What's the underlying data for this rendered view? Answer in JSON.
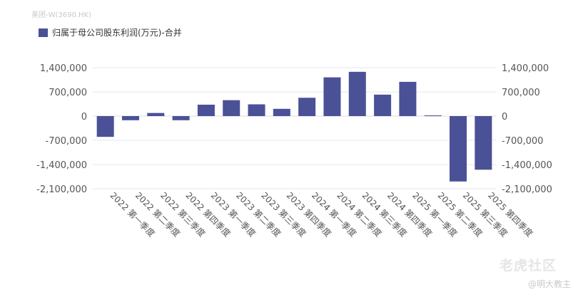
{
  "source_label": "美团-W(3690.HK)",
  "watermark": {
    "logo": "老虎社区",
    "author": "@明大教主"
  },
  "chart_data": {
    "type": "bar",
    "title": "",
    "xlabel": "",
    "ylabel": "",
    "categories": [
      "2022 第一季度",
      "2022 第二季度",
      "2022 第三季度",
      "2022 第四季度",
      "2023 第一季度",
      "2023 第二季度",
      "2023 第三季度",
      "2023 第四季度",
      "2024 第一季度",
      "2024 第二季度",
      "2024 第三季度",
      "2024 第四季度",
      "2025 第一季度",
      "2025 第二季度",
      "2025 第三季度",
      "2025 第四季度"
    ],
    "series": [
      {
        "name": "归属于母公司股东利润(万元)-合并",
        "color": "#4a5196",
        "values": [
          -600000,
          -120000,
          90000,
          -120000,
          330000,
          460000,
          340000,
          210000,
          530000,
          1120000,
          1280000,
          620000,
          990000,
          20000,
          -1890000,
          -1550000
        ]
      }
    ],
    "ylim": [
      -2100000,
      1400000
    ],
    "yticks": [
      1400000,
      700000,
      0,
      -700000,
      -1400000,
      -2100000
    ],
    "ytick_labels": [
      "1,400,000",
      "700,000",
      "0",
      "-700,000",
      "-1,400,000",
      "-2,100,000"
    ],
    "y_axis_sides": [
      "left",
      "right"
    ],
    "legend": "top-left",
    "grid": true
  }
}
